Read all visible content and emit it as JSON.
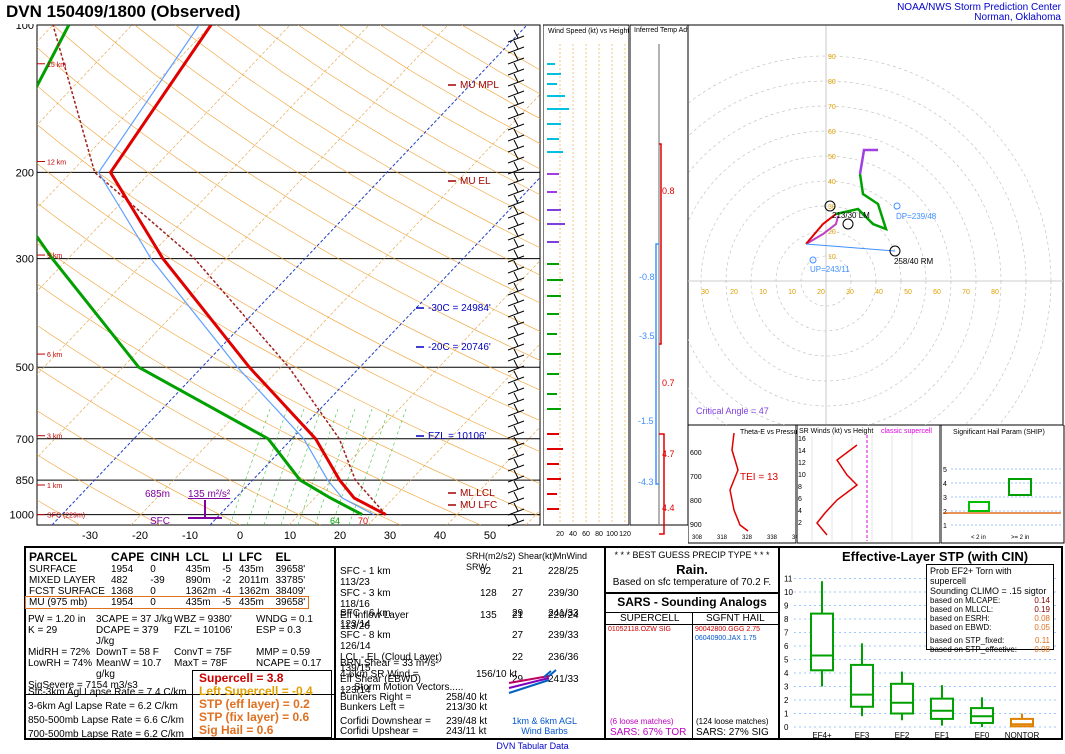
{
  "header": {
    "title": "DVN   150409/1800  (Observed)",
    "org_line1": "NOAA/NWS Storm Prediction Center",
    "org_line2": "Norman, Oklahoma"
  },
  "chart_data": [
    {
      "type": "line",
      "name": "skew-t",
      "pressure_ticks": [
        "100",
        "200",
        "300",
        "500",
        "700",
        "850",
        "1000"
      ],
      "temp_ticks": [
        "-30",
        "-20",
        "-10",
        "0",
        "10",
        "20",
        "30",
        "40",
        "50"
      ],
      "height_labels": [
        "15 km",
        "12 km",
        "9 km",
        "6 km",
        "3 km",
        "1 km",
        "SFC (229m)"
      ],
      "annotations": {
        "mu_mpl": "MU MPL",
        "mu_el": "MU EL",
        "ml_lcl": "ML LCL",
        "mu_lfc": "MU LFC",
        "m30c": "-30C = 24984'",
        "m20c": "-20C = 20746'",
        "fzl": "FZL = 10106'",
        "dcape": "685m",
        "srh": "135 m²/s²",
        "sfc": "SFC",
        "td_sfc": "64",
        "t_sfc": "70"
      },
      "temperature_profile": [
        [
          1000,
          21
        ],
        [
          925,
          15
        ],
        [
          850,
          11
        ],
        [
          700,
          3
        ],
        [
          500,
          -14
        ],
        [
          300,
          -38
        ],
        [
          200,
          -55
        ],
        [
          100,
          -60
        ]
      ],
      "dewpoint_profile": [
        [
          1000,
          18
        ],
        [
          925,
          12
        ],
        [
          850,
          6
        ],
        [
          700,
          -3
        ],
        [
          500,
          -28
        ],
        [
          300,
          -52
        ],
        [
          200,
          -70
        ],
        [
          100,
          -78
        ]
      ],
      "parcel_profile": [
        [
          1000,
          21
        ],
        [
          850,
          13
        ],
        [
          700,
          6
        ],
        [
          500,
          -9
        ],
        [
          300,
          -34
        ],
        [
          200,
          -57
        ],
        [
          100,
          -80
        ]
      ]
    },
    {
      "type": "bar",
      "name": "wind-speed-height",
      "title": "Wind Speed (kt) vs Height",
      "xticks": [
        "20",
        "40",
        "60",
        "80",
        "100",
        "120"
      ]
    },
    {
      "type": "bar",
      "name": "temp-advection",
      "title": "Inferred Temp Advection (C / hr)",
      "labels": [
        "0.8",
        "-0.8",
        "-3.5",
        "0.7",
        "-1.5",
        "4.7",
        "-4.3",
        "4.4"
      ]
    },
    {
      "type": "line",
      "name": "hodograph",
      "ring_labels": [
        "10",
        "20",
        "30",
        "40",
        "50",
        "60",
        "70",
        "80",
        "90"
      ],
      "x_labels": [
        "30",
        "20",
        "10",
        "10",
        "20",
        "30",
        "40",
        "50",
        "60",
        "70",
        "80"
      ],
      "labels": {
        "dp": "DP=239/48",
        "up": "UP=243/11",
        "rm": "258/40 RM",
        "lm": "213/30 LM",
        "crit": "Critical Angle = 47"
      }
    },
    {
      "type": "line",
      "name": "theta-e",
      "title": "Theta-E vs Pressure",
      "yticks": [
        "600",
        "700",
        "800",
        "900"
      ],
      "xticks": [
        "308",
        "318",
        "328",
        "338",
        "348"
      ],
      "tei": "TEI = 13"
    },
    {
      "type": "line",
      "name": "sr-winds",
      "title": "SR Winds (kt) vs Height",
      "classic": "classic supercell",
      "yticks": [
        "16",
        "14",
        "12",
        "10",
        "8",
        "6",
        "4",
        "2"
      ]
    },
    {
      "type": "bar",
      "name": "ship",
      "title": "Significant Hail Param (SHIP)",
      "yticks": [
        "1",
        "2",
        "3",
        "4",
        "5"
      ],
      "categories": [
        "< 2 in",
        ">= 2 in"
      ]
    },
    {
      "type": "bar",
      "name": "stp-boxplot",
      "title": "Effective-Layer STP (with CIN)",
      "yticks": [
        "0",
        "1",
        "2",
        "3",
        "4",
        "5",
        "6",
        "7",
        "8",
        "9",
        "10",
        "11"
      ],
      "categories": [
        "EF4+",
        "EF3",
        "EF2",
        "EF1",
        "EF0",
        "NONTOR"
      ],
      "boxes": [
        {
          "min": 3,
          "q1": 4.2,
          "med": 5.3,
          "q3": 8.4,
          "max": 10.8
        },
        {
          "min": 0.8,
          "q1": 1.5,
          "med": 2.4,
          "q3": 4.6,
          "max": 6.2
        },
        {
          "min": 0.5,
          "q1": 1.0,
          "med": 1.8,
          "q3": 3.2,
          "max": 4.1
        },
        {
          "min": 0.1,
          "q1": 0.6,
          "med": 1.2,
          "q3": 2.1,
          "max": 3.1
        },
        {
          "min": 0,
          "q1": 0.3,
          "med": 0.8,
          "q3": 1.4,
          "max": 2.2
        },
        {
          "min": 0,
          "q1": 0.05,
          "med": 0.2,
          "q3": 0.6,
          "max": 1.0
        }
      ],
      "prob_line1": "Prob EF2+ Torn with supercell",
      "prob_line2": "Sounding CLIMO = .15 sigtor",
      "prob_rows": [
        {
          "label": "based on MLCAPE:",
          "value": "0.14"
        },
        {
          "label": "based on MLLCL:",
          "value": "0.19"
        },
        {
          "label": "based on ESRH:",
          "value": "0.08"
        },
        {
          "label": "based on EBWD:",
          "value": "0.05"
        },
        {
          "label": "based on STP_fixed:",
          "value": "0.11"
        },
        {
          "label": "based on STP_effective:",
          "value": "0.08"
        }
      ]
    }
  ],
  "parcel": {
    "headers": [
      "PARCEL",
      "CAPE",
      "CINH",
      "LCL",
      "LI",
      "LFC",
      "EL"
    ],
    "rows": [
      [
        "SURFACE",
        "1954",
        "0",
        "435m",
        "-5",
        "435m",
        "39658'"
      ],
      [
        "MIXED LAYER",
        "482",
        "-39",
        "890m",
        "-2",
        "2011m",
        "33785'"
      ],
      [
        "FCST SURFACE",
        "1368",
        "0",
        "1362m",
        "-4",
        "1362m",
        "38409'"
      ],
      [
        "MU    (975 mb)",
        "1954",
        "0",
        "435m",
        "-5",
        "435m",
        "39658'"
      ]
    ],
    "misc": [
      [
        "PW = 1.20 in",
        "3CAPE = 37 J/kg",
        "WBZ = 9380'",
        "WNDG = 0.1"
      ],
      [
        "K = 29",
        "DCAPE = 379 J/kg",
        "FZL = 10106'",
        "ESP = 0.3"
      ],
      [
        "MidRH = 72%",
        "DownT = 58 F",
        "ConvT = 75F",
        "MMP = 0.59"
      ],
      [
        "LowRH = 74%",
        "MeanW = 10.7 g/kg",
        "MaxT = 78F",
        "NCAPE = 0.17"
      ]
    ],
    "sigsevere": "SigSevere = 7154 m3/s3",
    "lapse": [
      "Sfc-3km Agl Lapse Rate = 7.4 C/km",
      "3-6km Agl Lapse Rate = 6.2 C/km",
      "850-500mb Lapse Rate = 6.6 C/km",
      "700-500mb Lapse Rate = 6.2 C/km"
    ],
    "indices": [
      {
        "text": "Supercell = 3.8",
        "color": "#cc0000"
      },
      {
        "text": "Left Supercell = -0.4",
        "color": "#e0a000"
      },
      {
        "text": "STP (eff layer) = 0.2",
        "color": "#e07020"
      },
      {
        "text": "STP (fix layer) = 0.6",
        "color": "#e07020"
      },
      {
        "text": "Sig Hail = 0.6",
        "color": "#e07020"
      }
    ]
  },
  "kinematic": {
    "headers": [
      "SRH(m2/s2)",
      "Shear(kt)",
      "MnWind",
      "SRW"
    ],
    "rows1": [
      [
        "SFC - 1 km",
        "92",
        "21",
        "228/25",
        "113/23"
      ],
      [
        "SFC - 3 km",
        "128",
        "27",
        "239/30",
        "118/16"
      ],
      [
        "Eff Inflow Layer",
        "135",
        "21",
        "220/24",
        "113/26"
      ]
    ],
    "rows2": [
      [
        "SFC - 6 km",
        "",
        "29",
        "241/33",
        "123/14"
      ],
      [
        "SFC - 8 km",
        "",
        "27",
        "239/33",
        "126/14"
      ],
      [
        "LCL - EL (Cloud Layer)",
        "",
        "22",
        "236/36",
        "139/15"
      ],
      [
        "Eff Shear (EBWD)",
        "",
        "29",
        "241/33",
        "123/14"
      ]
    ],
    "brn": "BRN Shear = 33 m²/s²",
    "srw46": "4-6km SR Wind =",
    "srw46_val": "156/10 kt",
    "storm_motion": ".....Storm Motion Vectors.....",
    "bright": "Bunkers Right =",
    "bright_val": "258/40 kt",
    "bleft": "Bunkers Left =",
    "bleft_val": "213/30 kt",
    "cdown": "Corfidi Downshear =",
    "cdown_val": "239/48 kt",
    "cup": "Corfidi Upshear =",
    "cup_val": "243/11 kt",
    "barbs_label1": "1km & 6km AGL",
    "barbs_label2": "Wind Barbs"
  },
  "precip": {
    "title": "* * * BEST GUESS PRECIP TYPE * * *",
    "type": "Rain.",
    "basis": "Based on sfc temperature of 70.2 F."
  },
  "sars": {
    "title": "SARS - Sounding Analogs",
    "col1": "SUPERCELL",
    "col2": "SGFNT HAIL",
    "sc_match": "01052118.OZW  SIG",
    "hail_match1": "90042800.GGG  2.75",
    "hail_match2": "06040900.JAX  1.75",
    "sc_loose": "(6 loose matches)",
    "sc_pct": "SARS: 67% TOR",
    "hail_loose": "(124 loose matches)",
    "hail_pct": "SARS: 27% SIG"
  },
  "footer": "DVN Tabular Data"
}
